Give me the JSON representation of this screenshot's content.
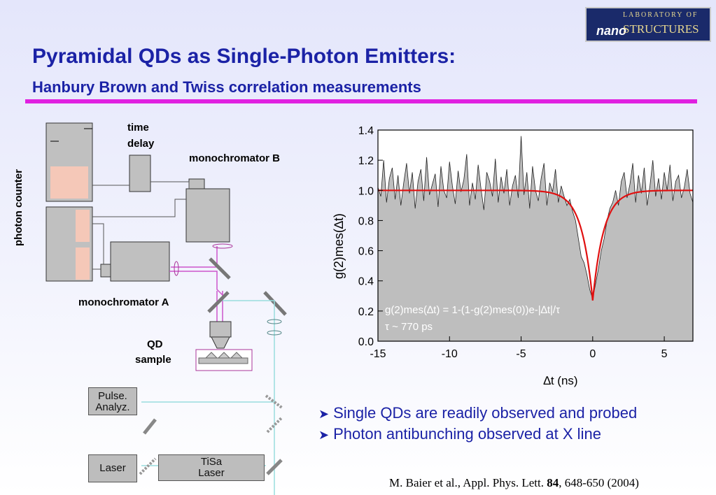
{
  "slide": {
    "title": "Pyramidal QDs as Single-Photon Emitters:",
    "subtitle": "Hanbury Brown and Twiss correlation measurements",
    "logo": {
      "top_text": "LABORATORY OF",
      "nano": "nano",
      "structures": "STRUCTURES"
    }
  },
  "setup": {
    "photon_counter": "photon counter",
    "time_delay_1": "time",
    "time_delay_2": "delay",
    "monochromator_b": "monochromator B",
    "monochromator_a": "monochromator A",
    "qd_sample_1": "QD",
    "qd_sample_2": "sample",
    "pulse_analyz_1": "Pulse.",
    "pulse_analyz_2": "Analyz.",
    "laser": "Laser",
    "tisa_1": "TiSa",
    "tisa_2": "Laser"
  },
  "bullets": [
    "Single QDs are readily observed and probed",
    "Photon antibunching observed at X line"
  ],
  "citation": {
    "pre": "M. Baier et al., Appl. Phys. Lett. ",
    "volume": "84",
    "post": ",  648-650 (2004)"
  },
  "colors": {
    "title_blue": "#1b22a6",
    "rule_magenta": "#e020e0",
    "fit_red": "#e01010",
    "data_fill": "#bebebe"
  },
  "chart_data": {
    "type": "area",
    "xlabel": "∆t (ns)",
    "ylabel": "g(2)mes(∆t)",
    "xlim": [
      -15,
      7
    ],
    "ylim": [
      0.0,
      1.4
    ],
    "xticks": [
      "-15",
      "-10",
      "-5",
      "0",
      "5"
    ],
    "yticks": [
      "0.0",
      "0.2",
      "0.4",
      "0.6",
      "0.8",
      "1.0",
      "1.2",
      "1.4"
    ],
    "annotation_formula": "g(2)mes(∆t) = 1-(1-g(2)mes(0))e-|∆t|/τ",
    "annotation_tau": "τ ~ 770 ps",
    "fit": {
      "name": "fit",
      "g0": 0.27,
      "tau_ns": 0.77,
      "baseline": 1.0
    },
    "series": [
      {
        "name": "measured",
        "x": [
          -15.0,
          -14.8,
          -14.6,
          -14.4,
          -14.2,
          -14.0,
          -13.8,
          -13.6,
          -13.4,
          -13.2,
          -13.0,
          -12.8,
          -12.6,
          -12.4,
          -12.2,
          -12.0,
          -11.8,
          -11.6,
          -11.4,
          -11.2,
          -11.0,
          -10.8,
          -10.6,
          -10.4,
          -10.2,
          -10.0,
          -9.8,
          -9.6,
          -9.4,
          -9.2,
          -9.0,
          -8.8,
          -8.6,
          -8.4,
          -8.2,
          -8.0,
          -7.8,
          -7.6,
          -7.4,
          -7.2,
          -7.0,
          -6.8,
          -6.6,
          -6.4,
          -6.2,
          -6.0,
          -5.8,
          -5.6,
          -5.4,
          -5.2,
          -5.0,
          -4.8,
          -4.6,
          -4.4,
          -4.2,
          -4.0,
          -3.8,
          -3.6,
          -3.4,
          -3.2,
          -3.0,
          -2.8,
          -2.6,
          -2.4,
          -2.2,
          -2.0,
          -1.8,
          -1.6,
          -1.4,
          -1.2,
          -1.0,
          -0.8,
          -0.6,
          -0.4,
          -0.2,
          0.0,
          0.2,
          0.4,
          0.6,
          0.8,
          1.0,
          1.2,
          1.4,
          1.6,
          1.8,
          2.0,
          2.2,
          2.4,
          2.6,
          2.8,
          3.0,
          3.2,
          3.4,
          3.6,
          3.8,
          4.0,
          4.2,
          4.4,
          4.6,
          4.8,
          5.0,
          5.2,
          5.4,
          5.6,
          5.8,
          6.0,
          6.2,
          6.4,
          6.6,
          6.8,
          7.0
        ],
        "values": [
          1.02,
          0.96,
          1.2,
          0.92,
          1.08,
          1.15,
          0.94,
          1.1,
          0.9,
          1.05,
          1.18,
          0.98,
          1.12,
          0.88,
          1.06,
          1.14,
          0.93,
          1.22,
          0.97,
          1.04,
          1.11,
          0.89,
          1.16,
          1.0,
          0.95,
          1.19,
          1.03,
          0.91,
          1.13,
          0.99,
          1.07,
          1.24,
          0.9,
          1.05,
          0.94,
          1.17,
          1.01,
          0.87,
          1.12,
          1.06,
          0.96,
          1.21,
          0.92,
          1.09,
          0.98,
          1.14,
          0.9,
          1.03,
          1.1,
          0.95,
          1.36,
          0.97,
          1.12,
          0.88,
          1.16,
          1.0,
          0.93,
          1.08,
          1.18,
          0.9,
          1.05,
          0.99,
          1.14,
          0.92,
          1.03,
          0.96,
          0.9,
          0.94,
          0.86,
          0.8,
          0.68,
          0.56,
          0.52,
          0.44,
          0.34,
          0.28,
          0.38,
          0.48,
          0.6,
          0.68,
          0.8,
          0.88,
          0.92,
          1.0,
          0.9,
          1.06,
          1.12,
          0.95,
          1.04,
          1.18,
          0.92,
          1.1,
          0.98,
          1.15,
          0.9,
          1.03,
          1.2,
          0.96,
          1.08,
          0.94,
          1.12,
          1.0,
          1.17,
          0.93,
          1.06,
          1.1,
          0.95,
          1.02,
          1.14,
          0.98,
          0.92
        ]
      }
    ]
  }
}
